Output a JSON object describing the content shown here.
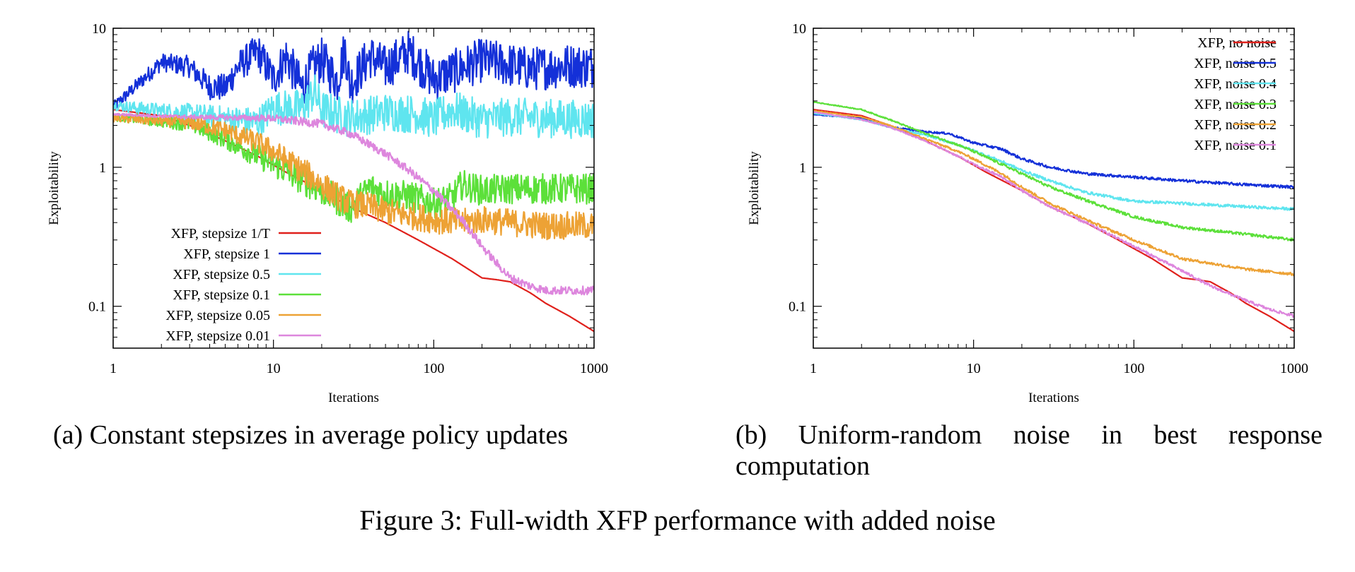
{
  "figure_caption": "Figure 3: Full-width XFP performance with added noise",
  "chart_data": [
    {
      "type": "line",
      "caption": "(a) Constant stepsizes in average policy updates",
      "xlabel": "Iterations",
      "ylabel": "Exploitability",
      "xscale": "log",
      "yscale": "log",
      "xlim": [
        1,
        1000
      ],
      "ylim": [
        0.05,
        10
      ],
      "xticks": [
        1,
        10,
        100,
        1000
      ],
      "xtick_labels": [
        "1",
        "10",
        "100",
        "1000"
      ],
      "yticks": [
        0.1,
        1,
        10
      ],
      "ytick_labels": [
        "0.1",
        "1",
        "10"
      ],
      "grid": false,
      "legend_position": "bottom-left",
      "series": [
        {
          "name": "XFP, stepsize 1/T",
          "color": "#e0201b",
          "x": [
            1,
            2,
            3,
            5,
            8,
            12,
            20,
            30,
            50,
            80,
            130,
            200,
            250,
            300,
            400,
            500,
            700,
            1000
          ],
          "y": [
            2.6,
            2.35,
            2.0,
            1.55,
            1.2,
            0.92,
            0.68,
            0.52,
            0.4,
            0.3,
            0.22,
            0.16,
            0.155,
            0.15,
            0.125,
            0.105,
            0.085,
            0.066
          ]
        },
        {
          "name": "XFP, stepsize 1",
          "color": "#1430d8",
          "x": [
            1,
            2,
            3,
            4,
            5,
            6,
            8,
            10,
            12,
            15,
            18,
            20,
            25,
            28,
            30,
            40,
            50,
            70,
            100,
            200,
            400,
            700,
            1000
          ],
          "y": [
            2.7,
            5.7,
            5.3,
            3.8,
            3.7,
            5.3,
            6.8,
            4.3,
            6.3,
            3.7,
            5.4,
            5.9,
            4.2,
            7.2,
            3.9,
            6.3,
            5.2,
            6.8,
            4.3,
            5.9,
            5.1,
            5.4,
            5.3
          ],
          "noise": 0.32
        },
        {
          "name": "XFP, stepsize 0.5",
          "color": "#5fe5ef",
          "x": [
            1,
            2,
            3,
            5,
            8,
            10,
            15,
            18,
            20,
            30,
            50,
            80,
            100,
            130,
            200,
            300,
            500,
            1000
          ],
          "y": [
            2.8,
            2.55,
            2.45,
            2.25,
            2.1,
            2.7,
            2.65,
            3.5,
            2.6,
            2.25,
            2.5,
            2.4,
            2.2,
            2.6,
            2.2,
            2.3,
            2.25,
            2.2
          ],
          "noise": 0.28
        },
        {
          "name": "XFP, stepsize 0.1",
          "color": "#5ce03a",
          "x": [
            1,
            3,
            5,
            8,
            10,
            15,
            20,
            25,
            30,
            40,
            50,
            70,
            100,
            130,
            150,
            200,
            300,
            500,
            1000
          ],
          "y": [
            2.3,
            2.05,
            1.6,
            1.2,
            1.05,
            0.82,
            0.68,
            0.58,
            0.5,
            0.72,
            0.65,
            0.62,
            0.55,
            0.6,
            0.75,
            0.68,
            0.7,
            0.7,
            0.7
          ],
          "noise": 0.22
        },
        {
          "name": "XFP, stepsize 0.05",
          "color": "#eda235",
          "x": [
            1,
            3,
            5,
            8,
            10,
            15,
            20,
            25,
            30,
            40,
            50,
            70,
            100,
            150,
            200,
            300,
            500,
            1000
          ],
          "y": [
            2.25,
            2.1,
            1.85,
            1.5,
            1.3,
            0.95,
            0.75,
            0.62,
            0.55,
            0.52,
            0.48,
            0.45,
            0.42,
            0.4,
            0.42,
            0.4,
            0.38,
            0.38
          ],
          "noise": 0.2
        },
        {
          "name": "XFP, stepsize 0.01",
          "color": "#dd86dd",
          "x": [
            1,
            3,
            5,
            10,
            20,
            30,
            50,
            70,
            100,
            150,
            200,
            250,
            300,
            400,
            500,
            700,
            1000
          ],
          "y": [
            2.4,
            2.3,
            2.28,
            2.25,
            2.05,
            1.75,
            1.25,
            0.95,
            0.68,
            0.42,
            0.27,
            0.2,
            0.16,
            0.14,
            0.13,
            0.13,
            0.13
          ],
          "noise": 0.06
        }
      ]
    },
    {
      "type": "line",
      "caption": "(b) Uniform-random noise in best response computation",
      "xlabel": "Iterations",
      "ylabel": "Exploitability",
      "xscale": "log",
      "yscale": "log",
      "xlim": [
        1,
        1000
      ],
      "ylim": [
        0.05,
        10
      ],
      "xticks": [
        1,
        10,
        100,
        1000
      ],
      "xtick_labels": [
        "1",
        "10",
        "100",
        "1000"
      ],
      "yticks": [
        0.1,
        1,
        10
      ],
      "ytick_labels": [
        "0.1",
        "1",
        "10"
      ],
      "grid": false,
      "legend_position": "top-right",
      "series": [
        {
          "name": "XFP, no noise",
          "color": "#e0201b",
          "x": [
            1,
            2,
            3,
            5,
            8,
            12,
            20,
            30,
            50,
            80,
            130,
            200,
            250,
            300,
            400,
            500,
            700,
            1000
          ],
          "y": [
            2.6,
            2.35,
            2.0,
            1.55,
            1.2,
            0.92,
            0.68,
            0.52,
            0.4,
            0.3,
            0.22,
            0.16,
            0.155,
            0.15,
            0.125,
            0.105,
            0.085,
            0.066
          ]
        },
        {
          "name": "XFP, noise 0.5",
          "color": "#1430d8",
          "x": [
            1,
            2,
            3,
            5,
            7,
            10,
            15,
            20,
            30,
            50,
            100,
            200,
            500,
            1000
          ],
          "y": [
            2.4,
            2.25,
            1.95,
            1.8,
            1.75,
            1.5,
            1.35,
            1.15,
            1.0,
            0.9,
            0.85,
            0.8,
            0.75,
            0.72
          ],
          "noise": 0.02
        },
        {
          "name": "XFP, noise 0.4",
          "color": "#5fe5ef",
          "x": [
            1,
            2,
            3,
            5,
            8,
            10,
            15,
            20,
            30,
            50,
            100,
            200,
            500,
            1000
          ],
          "y": [
            2.45,
            2.2,
            1.95,
            1.7,
            1.45,
            1.32,
            1.1,
            0.95,
            0.8,
            0.66,
            0.57,
            0.55,
            0.52,
            0.5
          ],
          "noise": 0.02
        },
        {
          "name": "XFP, noise 0.3",
          "color": "#5ce03a",
          "x": [
            1,
            2,
            3,
            5,
            8,
            10,
            15,
            20,
            30,
            50,
            100,
            200,
            500,
            1000
          ],
          "y": [
            2.95,
            2.6,
            2.2,
            1.75,
            1.45,
            1.3,
            1.05,
            0.9,
            0.72,
            0.58,
            0.44,
            0.37,
            0.33,
            0.3
          ],
          "noise": 0.02
        },
        {
          "name": "XFP, noise 0.2",
          "color": "#eda235",
          "x": [
            1,
            2,
            3,
            5,
            8,
            10,
            15,
            20,
            30,
            50,
            100,
            200,
            500,
            1000
          ],
          "y": [
            2.55,
            2.3,
            2.0,
            1.6,
            1.3,
            1.15,
            0.9,
            0.72,
            0.55,
            0.42,
            0.3,
            0.22,
            0.185,
            0.17
          ],
          "noise": 0.02
        },
        {
          "name": "XFP, noise 0.1",
          "color": "#dd86dd",
          "x": [
            1,
            2,
            3,
            5,
            8,
            10,
            15,
            20,
            30,
            50,
            100,
            200,
            300,
            500,
            700,
            1000
          ],
          "y": [
            2.5,
            2.2,
            1.95,
            1.55,
            1.2,
            1.05,
            0.85,
            0.68,
            0.52,
            0.4,
            0.27,
            0.18,
            0.14,
            0.11,
            0.095,
            0.085
          ],
          "noise": 0.02
        }
      ]
    }
  ]
}
